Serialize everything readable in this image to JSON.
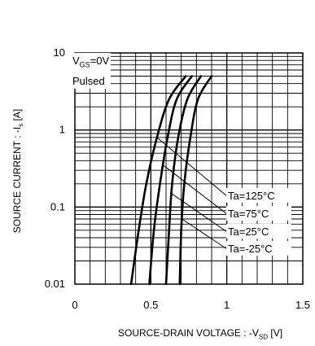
{
  "conditions": {
    "vgs_prefix": "V",
    "vgs_sub": "GS",
    "vgs_value": "=0V",
    "mode": "Pulsed"
  },
  "chart_data": {
    "type": "line",
    "title": "",
    "xlabel": {
      "main": "SOURCE-DRAIN VOLTAGE : -V",
      "sub": "SD",
      "unit": " [V]"
    },
    "ylabel": {
      "main": "SOURCE CURRENT : -I",
      "sub": "s",
      "unit": " [A]"
    },
    "xlim": [
      0,
      1.5
    ],
    "ylim": [
      0.01,
      10
    ],
    "yscale": "log",
    "grid": true,
    "x_ticks": [
      "0",
      "0.5",
      "1",
      "1.5"
    ],
    "y_ticks": [
      "0.01",
      "0.1",
      "1",
      "10"
    ],
    "series": [
      {
        "name": "Ta=125°C",
        "points": [
          [
            0.37,
            0.01
          ],
          [
            0.42,
            0.05
          ],
          [
            0.47,
            0.2
          ],
          [
            0.54,
            0.8
          ],
          [
            0.62,
            2.5
          ],
          [
            0.73,
            5
          ]
        ]
      },
      {
        "name": "Ta=75°C",
        "points": [
          [
            0.49,
            0.01
          ],
          [
            0.52,
            0.05
          ],
          [
            0.56,
            0.2
          ],
          [
            0.61,
            0.8
          ],
          [
            0.67,
            2.5
          ],
          [
            0.77,
            5
          ]
        ]
      },
      {
        "name": "Ta=25°C",
        "points": [
          [
            0.6,
            0.01
          ],
          [
            0.62,
            0.05
          ],
          [
            0.64,
            0.2
          ],
          [
            0.68,
            0.8
          ],
          [
            0.74,
            2.5
          ],
          [
            0.83,
            5
          ]
        ]
      },
      {
        "name": "Ta=-25°C",
        "points": [
          [
            0.69,
            0.01
          ],
          [
            0.7,
            0.05
          ],
          [
            0.72,
            0.2
          ],
          [
            0.76,
            0.8
          ],
          [
            0.81,
            2.5
          ],
          [
            0.9,
            5
          ]
        ]
      }
    ],
    "annotations": [
      "Ta=125°C",
      "Ta=75°C",
      "Ta=25°C",
      "Ta=-25°C"
    ]
  }
}
